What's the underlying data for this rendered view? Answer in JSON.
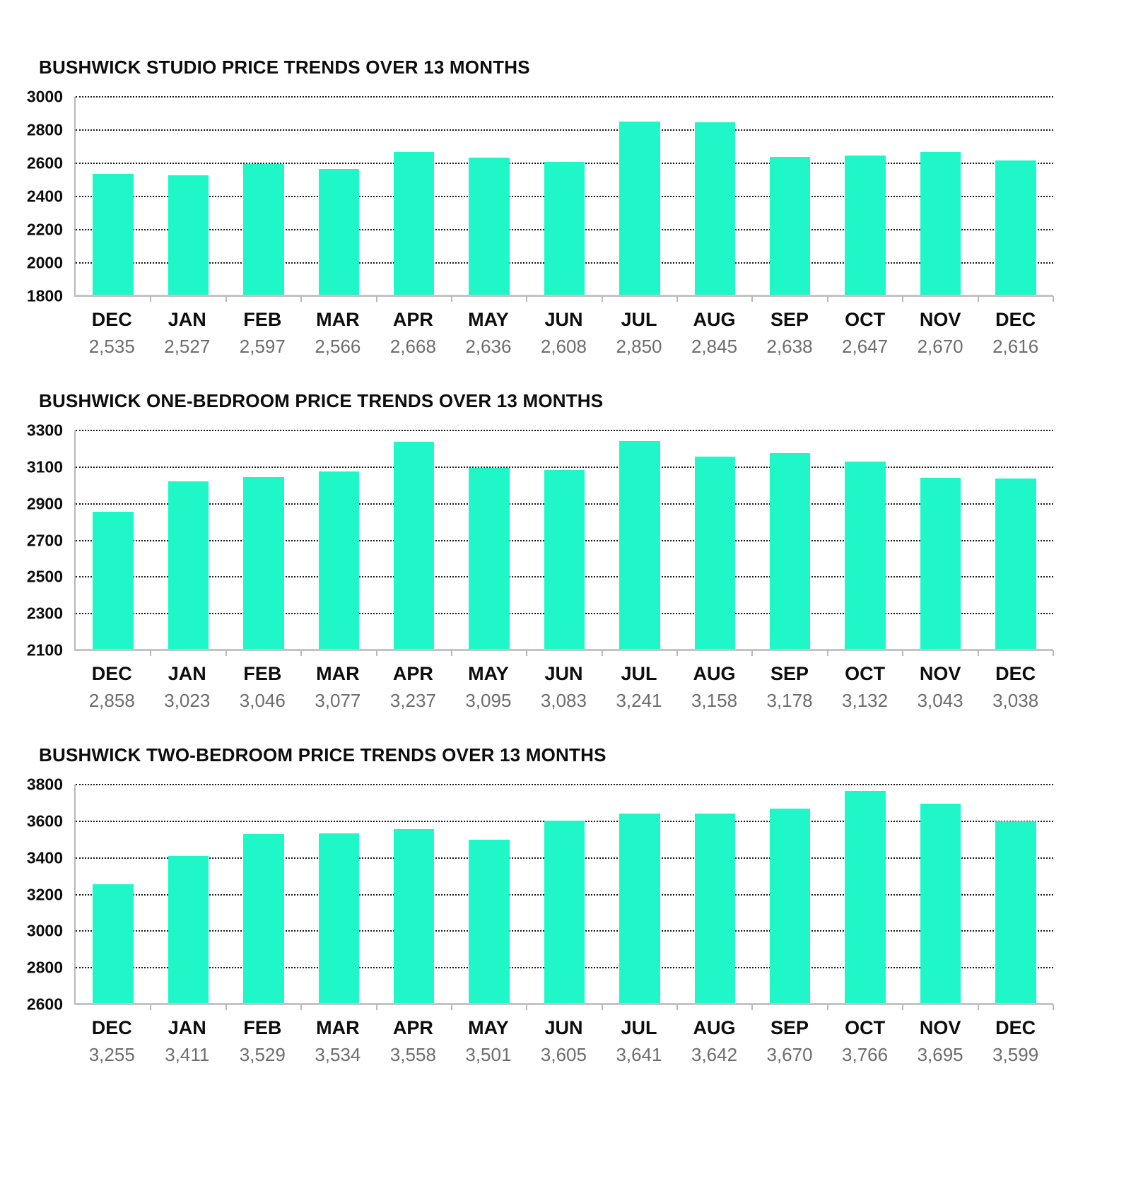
{
  "page": {
    "background": "#ffffff"
  },
  "colors": {
    "bar": "#20f7c9",
    "title_text": "#0d0d0d",
    "axis_text": "#0d0d0d",
    "value_text": "#6d6d6d",
    "gridline": "#1a1a1a",
    "baseline": "#c4c4c4"
  },
  "chart_data": [
    {
      "type": "bar",
      "title": "BUSHWICK STUDIO PRICE TRENDS OVER 13 MONTHS",
      "categories": [
        "DEC",
        "JAN",
        "FEB",
        "MAR",
        "APR",
        "MAY",
        "JUN",
        "JUL",
        "AUG",
        "SEP",
        "OCT",
        "NOV",
        "DEC"
      ],
      "values": [
        2535,
        2527,
        2597,
        2566,
        2668,
        2636,
        2608,
        2850,
        2845,
        2638,
        2647,
        2670,
        2616
      ],
      "value_labels": [
        "2,535",
        "2,527",
        "2,597",
        "2,566",
        "2,668",
        "2,636",
        "2,608",
        "2,850",
        "2,845",
        "2,638",
        "2,647",
        "2,670",
        "2,616"
      ],
      "ylim": [
        1800,
        3000
      ],
      "yticks": [
        3000,
        2800,
        2600,
        2400,
        2200,
        2000,
        1800
      ],
      "xlabel": "",
      "ylabel": "",
      "grid": "horizontal-dotted",
      "legend": "none"
    },
    {
      "type": "bar",
      "title": "BUSHWICK ONE-BEDROOM PRICE TRENDS OVER 13 MONTHS",
      "categories": [
        "DEC",
        "JAN",
        "FEB",
        "MAR",
        "APR",
        "MAY",
        "JUN",
        "JUL",
        "AUG",
        "SEP",
        "OCT",
        "NOV",
        "DEC"
      ],
      "values": [
        2858,
        3023,
        3046,
        3077,
        3237,
        3095,
        3083,
        3241,
        3158,
        3178,
        3132,
        3043,
        3038
      ],
      "value_labels": [
        "2,858",
        "3,023",
        "3,046",
        "3,077",
        "3,237",
        "3,095",
        "3,083",
        "3,241",
        "3,158",
        "3,178",
        "3,132",
        "3,043",
        "3,038"
      ],
      "ylim": [
        2100,
        3300
      ],
      "yticks": [
        3300,
        3100,
        2900,
        2700,
        2500,
        2300,
        2100
      ],
      "xlabel": "",
      "ylabel": "",
      "grid": "horizontal-dotted",
      "legend": "none"
    },
    {
      "type": "bar",
      "title": "BUSHWICK TWO-BEDROOM PRICE TRENDS OVER 13 MONTHS",
      "categories": [
        "DEC",
        "JAN",
        "FEB",
        "MAR",
        "APR",
        "MAY",
        "JUN",
        "JUL",
        "AUG",
        "SEP",
        "OCT",
        "NOV",
        "DEC"
      ],
      "values": [
        3255,
        3411,
        3529,
        3534,
        3558,
        3501,
        3605,
        3641,
        3642,
        3670,
        3766,
        3695,
        3599
      ],
      "value_labels": [
        "3,255",
        "3,411",
        "3,529",
        "3,534",
        "3,558",
        "3,501",
        "3,605",
        "3,641",
        "3,642",
        "3,670",
        "3,766",
        "3,695",
        "3,599"
      ],
      "ylim": [
        2600,
        3800
      ],
      "yticks": [
        3800,
        3600,
        3400,
        3200,
        3000,
        2800,
        2600
      ],
      "xlabel": "",
      "ylabel": "",
      "grid": "horizontal-dotted",
      "legend": "none"
    }
  ]
}
